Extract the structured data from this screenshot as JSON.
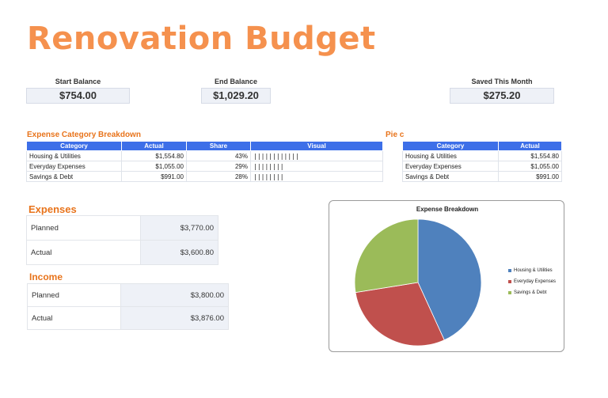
{
  "title": "Renovation Budget",
  "summary": [
    {
      "label": "Start Balance",
      "value": "$754.00"
    },
    {
      "label": "End Balance",
      "value": "$1,029.20"
    },
    {
      "label": "Saved This Month",
      "value": "$275.20"
    }
  ],
  "breakdown": {
    "heading": "Expense Category Breakdown",
    "headers": [
      "Category",
      "Actual",
      "Share",
      "Visual"
    ],
    "rows": [
      {
        "category": "Housing & Utilities",
        "actual": "$1,554.80",
        "share": "43%",
        "visual": "||||||||||||"
      },
      {
        "category": "Everyday Expenses",
        "actual": "$1,055.00",
        "share": "29%",
        "visual": "||||||||"
      },
      {
        "category": "Savings & Debt",
        "actual": "$991.00",
        "share": "28%",
        "visual": "||||||||"
      }
    ]
  },
  "pie_table": {
    "heading": "Pie c",
    "headers": [
      "Category",
      "Actual"
    ],
    "rows": [
      {
        "category": "Housing & Utilities",
        "actual": "$1,554.80"
      },
      {
        "category": "Everyday Expenses",
        "actual": "$1,055.00"
      },
      {
        "category": "Savings & Debt",
        "actual": "$991.00"
      }
    ]
  },
  "expenses": {
    "heading": "Expenses",
    "rows": [
      {
        "label": "Planned",
        "amount": "$3,770.00"
      },
      {
        "label": "Actual",
        "amount": "$3,600.80"
      }
    ]
  },
  "income": {
    "heading": "Income",
    "rows": [
      {
        "label": "Planned",
        "amount": "$3,800.00"
      },
      {
        "label": "Actual",
        "amount": "$3,876.00"
      }
    ]
  },
  "chart_data": {
    "type": "pie",
    "title": "Expense Breakdown",
    "categories": [
      "Housing & Utilities",
      "Everyday Expenses",
      "Savings & Debt"
    ],
    "values": [
      1554.8,
      1055.0,
      991.0
    ],
    "colors": [
      "#4f81bd",
      "#c0504d",
      "#9bbb59"
    ],
    "legend_position": "right"
  }
}
